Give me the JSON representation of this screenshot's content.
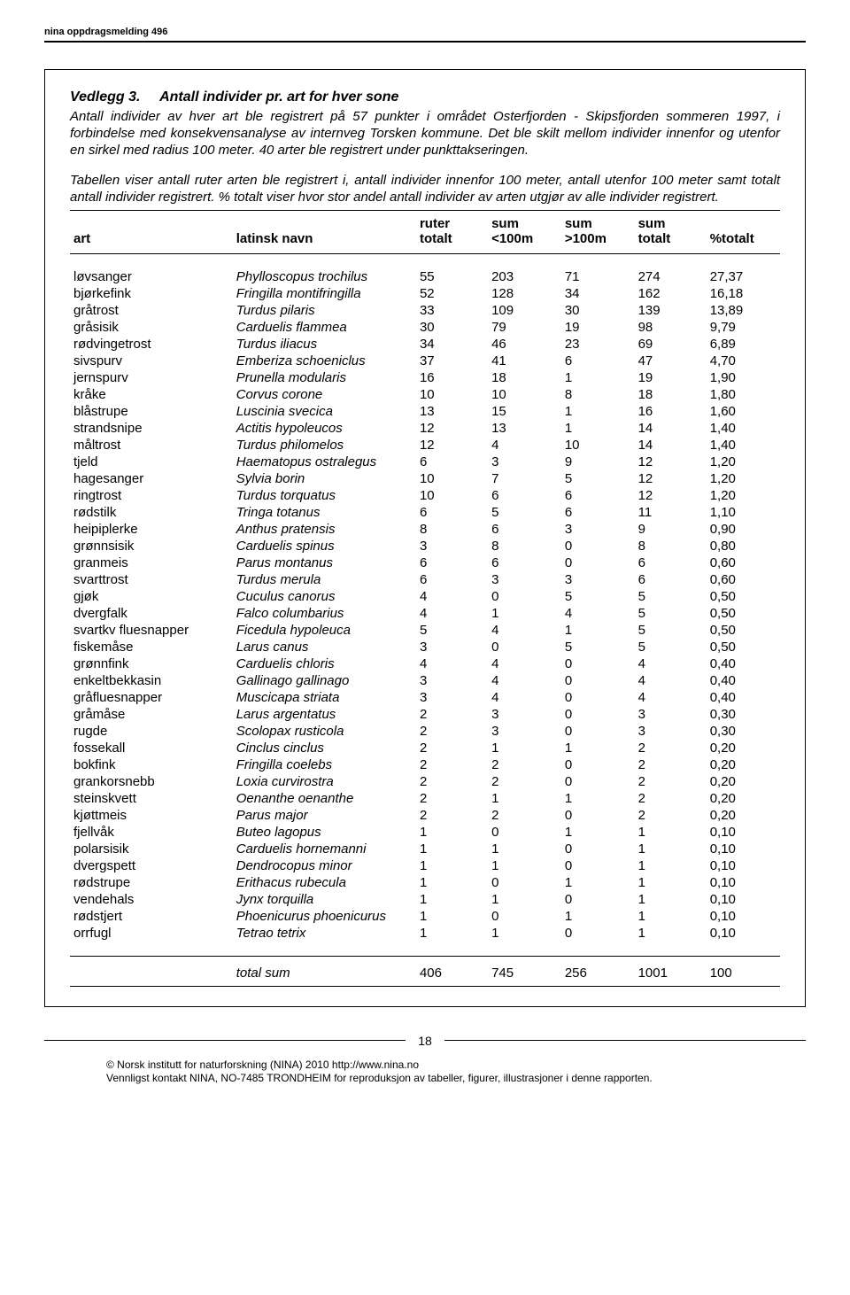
{
  "running_header": "nina oppdragsmelding 496",
  "title_prefix": "Vedlegg 3.",
  "title_rest": "Antall individer pr. art for hver sone",
  "intro1": "Antall individer av hver art ble registrert på 57 punkter i området Osterfjorden - Skipsfjorden sommeren 1997, i forbindelse med konsekvensanalyse av internveg Torsken kommune. Det ble skilt mellom individer innenfor og utenfor en sirkel med radius 100 meter.  40 arter ble registrert under punkttakseringen.",
  "intro2": "Tabellen viser antall ruter arten ble registrert i, antall individer innenfor 100 meter, antall utenfor 100 meter samt totalt antall individer registrert. % totalt viser hvor stor andel antall individer av arten utgjør av alle individer registrert.",
  "headers": {
    "art": "art",
    "latin": "latinsk navn",
    "ruter1": "ruter",
    "ruter2": "totalt",
    "sum_lt1": "sum",
    "sum_lt2": "<100m",
    "sum_gt1": "sum",
    "sum_gt2": ">100m",
    "sum_tot1": "sum",
    "sum_tot2": "totalt",
    "pct": "%totalt"
  },
  "rows": [
    {
      "art": "løvsanger",
      "latin": "Phylloscopus trochilus",
      "r": "55",
      "lt": "203",
      "gt": "71",
      "tot": "274",
      "pct": "27,37"
    },
    {
      "art": "bjørkefink",
      "latin": "Fringilla montifringilla",
      "r": "52",
      "lt": "128",
      "gt": "34",
      "tot": "162",
      "pct": "16,18"
    },
    {
      "art": "gråtrost",
      "latin": "Turdus pilaris",
      "r": "33",
      "lt": "109",
      "gt": "30",
      "tot": "139",
      "pct": "13,89"
    },
    {
      "art": "gråsisik",
      "latin": "Carduelis flammea",
      "r": "30",
      "lt": "79",
      "gt": "19",
      "tot": "98",
      "pct": "9,79"
    },
    {
      "art": "rødvingetrost",
      "latin": "Turdus iliacus",
      "r": "34",
      "lt": "46",
      "gt": "23",
      "tot": "69",
      "pct": "6,89"
    },
    {
      "art": "sivspurv",
      "latin": "Emberiza schoeniclus",
      "r": "37",
      "lt": "41",
      "gt": "6",
      "tot": "47",
      "pct": "4,70"
    },
    {
      "art": "jernspurv",
      "latin": "Prunella modularis",
      "r": "16",
      "lt": "18",
      "gt": "1",
      "tot": "19",
      "pct": "1,90"
    },
    {
      "art": "kråke",
      "latin": "Corvus corone",
      "r": "10",
      "lt": "10",
      "gt": "8",
      "tot": "18",
      "pct": "1,80"
    },
    {
      "art": "blåstrupe",
      "latin": "Luscinia svecica",
      "r": "13",
      "lt": "15",
      "gt": "1",
      "tot": "16",
      "pct": "1,60"
    },
    {
      "art": "strandsnipe",
      "latin": "Actitis hypoleucos",
      "r": "12",
      "lt": "13",
      "gt": "1",
      "tot": "14",
      "pct": "1,40"
    },
    {
      "art": "måltrost",
      "latin": "Turdus philomelos",
      "r": "12",
      "lt": "4",
      "gt": "10",
      "tot": "14",
      "pct": "1,40"
    },
    {
      "art": "tjeld",
      "latin": "Haematopus ostralegus",
      "r": "6",
      "lt": "3",
      "gt": "9",
      "tot": "12",
      "pct": "1,20"
    },
    {
      "art": "hagesanger",
      "latin": "Sylvia borin",
      "r": "10",
      "lt": "7",
      "gt": "5",
      "tot": "12",
      "pct": "1,20"
    },
    {
      "art": "ringtrost",
      "latin": "Turdus torquatus",
      "r": "10",
      "lt": "6",
      "gt": "6",
      "tot": "12",
      "pct": "1,20"
    },
    {
      "art": "rødstilk",
      "latin": "Tringa totanus",
      "r": "6",
      "lt": "5",
      "gt": "6",
      "tot": "11",
      "pct": "1,10"
    },
    {
      "art": "heipiplerke",
      "latin": "Anthus pratensis",
      "r": "8",
      "lt": "6",
      "gt": "3",
      "tot": "9",
      "pct": "0,90"
    },
    {
      "art": "grønnsisik",
      "latin": "Carduelis spinus",
      "r": "3",
      "lt": "8",
      "gt": "0",
      "tot": "8",
      "pct": "0,80"
    },
    {
      "art": "granmeis",
      "latin": "Parus montanus",
      "r": "6",
      "lt": "6",
      "gt": "0",
      "tot": "6",
      "pct": "0,60"
    },
    {
      "art": "svarttrost",
      "latin": "Turdus merula",
      "r": "6",
      "lt": "3",
      "gt": "3",
      "tot": "6",
      "pct": "0,60"
    },
    {
      "art": "gjøk",
      "latin": "Cuculus canorus",
      "r": "4",
      "lt": "0",
      "gt": "5",
      "tot": "5",
      "pct": "0,50"
    },
    {
      "art": "dvergfalk",
      "latin": "Falco columbarius",
      "r": "4",
      "lt": "1",
      "gt": "4",
      "tot": "5",
      "pct": "0,50"
    },
    {
      "art": "svartkv fluesnapper",
      "latin": "Ficedula hypoleuca",
      "r": "5",
      "lt": "4",
      "gt": "1",
      "tot": "5",
      "pct": "0,50"
    },
    {
      "art": "fiskemåse",
      "latin": "Larus canus",
      "r": "3",
      "lt": "0",
      "gt": "5",
      "tot": "5",
      "pct": "0,50"
    },
    {
      "art": "grønnfink",
      "latin": "Carduelis chloris",
      "r": "4",
      "lt": "4",
      "gt": "0",
      "tot": "4",
      "pct": "0,40"
    },
    {
      "art": "enkeltbekkasin",
      "latin": "Gallinago gallinago",
      "r": "3",
      "lt": "4",
      "gt": "0",
      "tot": "4",
      "pct": "0,40"
    },
    {
      "art": "gråfluesnapper",
      "latin": "Muscicapa striata",
      "r": "3",
      "lt": "4",
      "gt": "0",
      "tot": "4",
      "pct": "0,40"
    },
    {
      "art": "gråmåse",
      "latin": "Larus argentatus",
      "r": "2",
      "lt": "3",
      "gt": "0",
      "tot": "3",
      "pct": "0,30"
    },
    {
      "art": "rugde",
      "latin": "Scolopax rusticola",
      "r": "2",
      "lt": "3",
      "gt": "0",
      "tot": "3",
      "pct": "0,30"
    },
    {
      "art": "fossekall",
      "latin": "Cinclus cinclus",
      "r": "2",
      "lt": "1",
      "gt": "1",
      "tot": "2",
      "pct": "0,20"
    },
    {
      "art": "bokfink",
      "latin": "Fringilla coelebs",
      "r": "2",
      "lt": "2",
      "gt": "0",
      "tot": "2",
      "pct": "0,20"
    },
    {
      "art": "grankorsnebb",
      "latin": "Loxia curvirostra",
      "r": "2",
      "lt": "2",
      "gt": "0",
      "tot": "2",
      "pct": "0,20"
    },
    {
      "art": "steinskvett",
      "latin": "Oenanthe oenanthe",
      "r": "2",
      "lt": "1",
      "gt": "1",
      "tot": "2",
      "pct": "0,20"
    },
    {
      "art": "kjøttmeis",
      "latin": "Parus major",
      "r": "2",
      "lt": "2",
      "gt": "0",
      "tot": "2",
      "pct": "0,20"
    },
    {
      "art": "fjellvåk",
      "latin": "Buteo lagopus",
      "r": "1",
      "lt": "0",
      "gt": "1",
      "tot": "1",
      "pct": "0,10"
    },
    {
      "art": "polarsisik",
      "latin": "Carduelis hornemanni",
      "r": "1",
      "lt": "1",
      "gt": "0",
      "tot": "1",
      "pct": "0,10"
    },
    {
      "art": "dvergspett",
      "latin": "Dendrocopus minor",
      "r": "1",
      "lt": "1",
      "gt": "0",
      "tot": "1",
      "pct": "0,10"
    },
    {
      "art": "rødstrupe",
      "latin": "Erithacus rubecula",
      "r": "1",
      "lt": "0",
      "gt": "1",
      "tot": "1",
      "pct": "0,10"
    },
    {
      "art": "vendehals",
      "latin": "Jynx torquilla",
      "r": "1",
      "lt": "1",
      "gt": "0",
      "tot": "1",
      "pct": "0,10"
    },
    {
      "art": "rødstjert",
      "latin": "Phoenicurus phoenicurus",
      "r": "1",
      "lt": "0",
      "gt": "1",
      "tot": "1",
      "pct": "0,10"
    },
    {
      "art": "orrfugl",
      "latin": "Tetrao tetrix",
      "r": "1",
      "lt": "1",
      "gt": "0",
      "tot": "1",
      "pct": "0,10"
    }
  ],
  "total": {
    "label": "total sum",
    "r": "406",
    "lt": "745",
    "gt": "256",
    "tot": "1001",
    "pct": "100"
  },
  "page_number": "18",
  "footer1": "© Norsk institutt for naturforskning (NINA) 2010 http://www.nina.no",
  "footer2": "Vennligst kontakt NINA, NO-7485 TRONDHEIM for reproduksjon av tabeller, figurer, illustrasjoner i denne rapporten."
}
